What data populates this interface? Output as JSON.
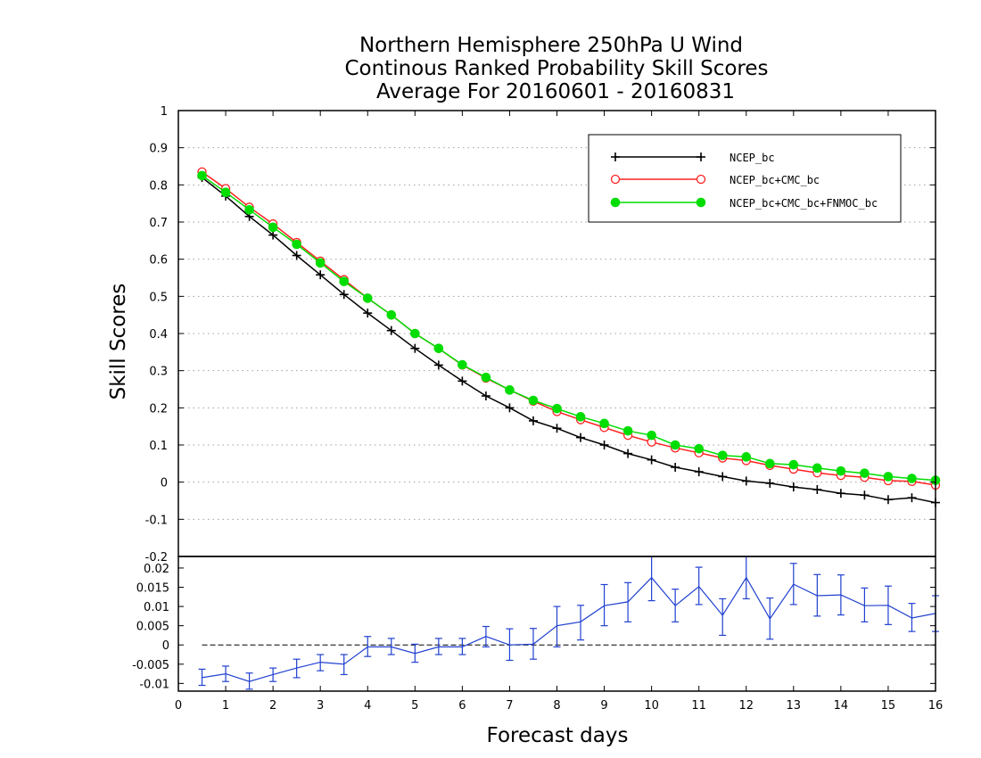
{
  "chart_data": [
    {
      "type": "line",
      "panel": "main",
      "title": [
        "Northern Hemisphere 250hPa U Wind",
        "Continous Ranked Probability Skill Scores",
        "Average For 20160601 - 20160831"
      ],
      "xlabel": "Forecast days",
      "ylabel": "Skill Scores",
      "xlim": [
        0,
        16
      ],
      "ylim": [
        -0.2,
        1
      ],
      "x_ticks": [
        "0",
        "1",
        "2",
        "3",
        "4",
        "5",
        "6",
        "7",
        "8",
        "9",
        "10",
        "11",
        "12",
        "13",
        "14",
        "15",
        "16"
      ],
      "y_ticks": [
        "1",
        "0.9",
        "0.8",
        "0.7",
        "0.6",
        "0.5",
        "0.4",
        "0.3",
        "0.2",
        "0.1",
        "0",
        "-0.1",
        "-0.2"
      ],
      "grid": "horizontal dotted",
      "legend_position": "top-right",
      "x": [
        0.5,
        1,
        1.5,
        2,
        2.5,
        3,
        3.5,
        4,
        4.5,
        5,
        5.5,
        6,
        6.5,
        7,
        7.5,
        8,
        8.5,
        9,
        9.5,
        10,
        10.5,
        11,
        11.5,
        12,
        12.5,
        13,
        13.5,
        14,
        14.5,
        15,
        15.5,
        16
      ],
      "series": [
        {
          "name": "NCEP_bc",
          "color": "#000000",
          "marker": "plus",
          "values": [
            0.82,
            0.77,
            0.715,
            0.665,
            0.61,
            0.558,
            0.505,
            0.455,
            0.408,
            0.36,
            0.315,
            0.272,
            0.232,
            0.2,
            0.165,
            0.145,
            0.12,
            0.1,
            0.077,
            0.06,
            0.04,
            0.028,
            0.015,
            0.003,
            -0.003,
            -0.013,
            -0.02,
            -0.03,
            -0.035,
            -0.047,
            -0.042,
            -0.055
          ]
        },
        {
          "name": "NCEP_bc+CMC_bc",
          "color": "#ff2020",
          "marker": "open-circle",
          "values": [
            0.835,
            0.79,
            0.74,
            0.695,
            0.645,
            0.595,
            0.545,
            0.495,
            0.45,
            0.4,
            0.36,
            0.315,
            0.28,
            0.248,
            0.218,
            0.19,
            0.168,
            0.147,
            0.126,
            0.108,
            0.092,
            0.079,
            0.065,
            0.058,
            0.045,
            0.035,
            0.025,
            0.018,
            0.013,
            0.004,
            0.002,
            -0.008
          ]
        },
        {
          "name": "NCEP_bc+CMC_bc+FNMOC_bc",
          "color": "#00dd00",
          "marker": "filled-circle",
          "values": [
            0.825,
            0.78,
            0.733,
            0.686,
            0.64,
            0.59,
            0.54,
            0.495,
            0.45,
            0.4,
            0.36,
            0.316,
            0.282,
            0.248,
            0.22,
            0.198,
            0.176,
            0.158,
            0.138,
            0.126,
            0.1,
            0.09,
            0.072,
            0.068,
            0.05,
            0.047,
            0.038,
            0.03,
            0.024,
            0.015,
            0.01,
            0.005
          ]
        }
      ]
    },
    {
      "type": "line",
      "panel": "difference",
      "xlim": [
        0,
        16
      ],
      "ylim": [
        -0.012,
        0.023
      ],
      "y_ticks": [
        "0.02",
        "0.015",
        "0.01",
        "0.005",
        "0",
        "-0.005",
        "-0.01"
      ],
      "reference_line": 0,
      "x": [
        0.5,
        1,
        1.5,
        2,
        2.5,
        3,
        3.5,
        4,
        4.5,
        5,
        5.5,
        6,
        6.5,
        7,
        7.5,
        8,
        8.5,
        9,
        9.5,
        10,
        10.5,
        11,
        11.5,
        12,
        12.5,
        13,
        13.5,
        14,
        14.5,
        15,
        15.5,
        16
      ],
      "series": [
        {
          "color": "#2040d0",
          "values": [
            -0.0085,
            -0.0075,
            -0.0095,
            -0.0077,
            -0.006,
            -0.0045,
            -0.005,
            -0.0005,
            -0.0005,
            -0.0022,
            -0.0005,
            -0.0005,
            0.0022,
            0.0,
            0.0002,
            0.005,
            0.006,
            0.0102,
            0.0112,
            0.0175,
            0.0102,
            0.0152,
            0.0077,
            0.0175,
            0.0068,
            0.0158,
            0.0128,
            0.013,
            0.0102,
            0.0103,
            0.007,
            0.0082
          ],
          "error_low": [
            -0.0105,
            -0.0095,
            -0.0115,
            -0.0095,
            -0.0085,
            -0.0067,
            -0.0077,
            -0.003,
            -0.0025,
            -0.0045,
            -0.0025,
            -0.0025,
            -0.0005,
            -0.004,
            -0.0037,
            -0.0005,
            0.0013,
            0.005,
            0.006,
            0.0115,
            0.006,
            0.0105,
            0.0025,
            0.012,
            0.0015,
            0.0105,
            0.0075,
            0.0078,
            0.006,
            0.0053,
            0.0035,
            0.0035
          ],
          "error_high": [
            -0.0063,
            -0.0055,
            -0.0073,
            -0.006,
            -0.0037,
            -0.0025,
            -0.0025,
            0.0022,
            0.0017,
            0.0002,
            0.0017,
            0.0017,
            0.0048,
            0.0042,
            0.0043,
            0.01,
            0.0103,
            0.0157,
            0.0162,
            0.0232,
            0.0145,
            0.0202,
            0.012,
            0.0232,
            0.0122,
            0.0212,
            0.0183,
            0.0182,
            0.0148,
            0.0153,
            0.0108,
            0.0128
          ]
        }
      ]
    }
  ]
}
